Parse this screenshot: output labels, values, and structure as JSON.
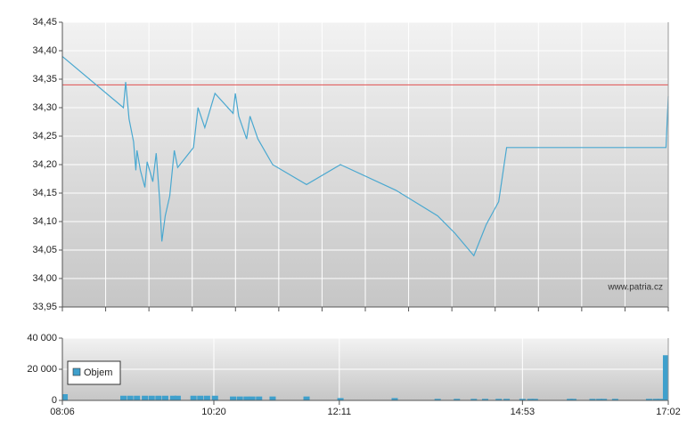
{
  "chart_data": [
    {
      "type": "line",
      "color": "#4aa8d0",
      "reference_line": {
        "value": 34.34,
        "color": "#e05050"
      },
      "watermark": "www.patria.cz",
      "x": [
        486,
        540,
        542,
        545,
        549,
        551,
        552,
        555,
        559,
        561,
        566,
        569,
        572,
        574,
        577,
        581,
        585,
        588,
        602,
        606,
        612,
        621,
        637,
        639,
        642,
        649,
        652,
        659,
        672,
        702,
        732,
        781,
        818,
        833,
        850,
        861,
        872,
        879,
        1020,
        1022
      ],
      "values": [
        34.39,
        34.3,
        34.345,
        34.28,
        34.24,
        34.19,
        34.225,
        34.19,
        34.16,
        34.205,
        34.17,
        34.22,
        34.14,
        34.065,
        34.11,
        34.145,
        34.225,
        34.195,
        34.23,
        34.3,
        34.265,
        34.325,
        34.29,
        34.325,
        34.285,
        34.245,
        34.285,
        34.245,
        34.2,
        34.165,
        34.2,
        34.155,
        34.11,
        34.08,
        34.04,
        34.095,
        34.135,
        34.23,
        34.23,
        34.32
      ],
      "xlim": [
        486,
        1022
      ],
      "ylim": [
        33.95,
        34.45
      ],
      "yticks": [
        {
          "value": 33.95,
          "label": "33,95"
        },
        {
          "value": 34.0,
          "label": "34,00"
        },
        {
          "value": 34.05,
          "label": "34,05"
        },
        {
          "value": 34.1,
          "label": "34,10"
        },
        {
          "value": 34.15,
          "label": "34,15"
        },
        {
          "value": 34.2,
          "label": "34,20"
        },
        {
          "value": 34.25,
          "label": "34,25"
        },
        {
          "value": 34.3,
          "label": "34,30"
        },
        {
          "value": 34.35,
          "label": "34,35"
        },
        {
          "value": 34.4,
          "label": "34,40"
        },
        {
          "value": 34.45,
          "label": "34,45"
        }
      ],
      "grid": true
    },
    {
      "type": "bar",
      "legend": "upper left",
      "x": [
        488,
        540,
        546,
        552,
        559,
        565,
        571,
        577,
        584,
        588,
        602,
        608,
        614,
        621,
        637,
        643,
        649,
        654,
        660,
        672,
        702,
        732,
        780,
        818,
        835,
        850,
        860,
        872,
        879,
        893,
        900,
        904,
        935,
        938,
        955,
        961,
        965,
        975,
        1005,
        1011,
        1015,
        1020
      ],
      "series": [
        {
          "name": "Objem",
          "color": "#3fa0cc",
          "values": [
            4000,
            3000,
            3000,
            3000,
            3000,
            3000,
            3000,
            3000,
            3000,
            3000,
            3000,
            3000,
            3000,
            3000,
            2500,
            2500,
            2500,
            2500,
            2500,
            2500,
            2500,
            1500,
            1500,
            1000,
            1000,
            1000,
            1000,
            1000,
            1000,
            1000,
            1000,
            1000,
            1000,
            1000,
            1000,
            1000,
            1000,
            1000,
            1000,
            1000,
            1000,
            29000
          ]
        }
      ],
      "xlim": [
        486,
        1022
      ],
      "xticks": [
        {
          "value": 486,
          "label": "08:06"
        },
        {
          "value": 620,
          "label": "10:20"
        },
        {
          "value": 731,
          "label": "12:11"
        },
        {
          "value": 893,
          "label": "14:53"
        },
        {
          "value": 1022,
          "label": "17:02"
        }
      ],
      "ylim": [
        0,
        40000
      ],
      "yticks": [
        0,
        {
          "value": 20000,
          "label": "20 000"
        },
        {
          "value": 40000,
          "label": "40 000"
        }
      ],
      "grid": true
    }
  ]
}
